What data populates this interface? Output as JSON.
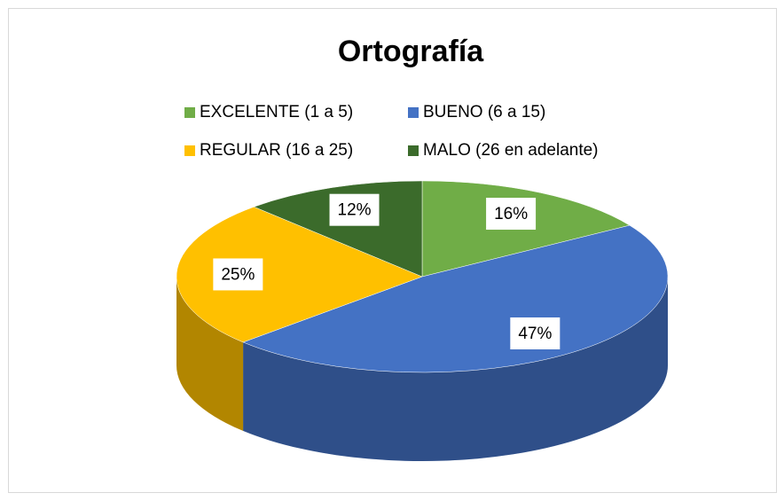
{
  "chart_data": {
    "type": "pie",
    "title": "Ortografía",
    "categories": [
      "EXCELENTE (1 a 5)",
      "BUENO (6 a 15)",
      "REGULAR (16 a 25)",
      "MALO (26 en adelante)"
    ],
    "values": [
      16,
      47,
      25,
      12
    ],
    "value_labels": [
      "16%",
      "47%",
      "25%",
      "12%"
    ],
    "colors": [
      "#70ad47",
      "#4472c4",
      "#ffc000",
      "#3b6b2b"
    ],
    "legend": "top"
  }
}
